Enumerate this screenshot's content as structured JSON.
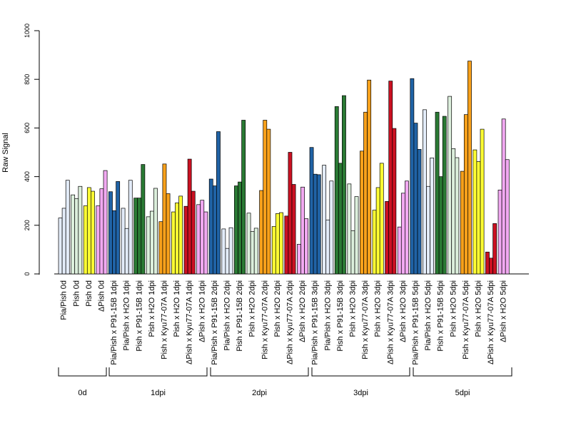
{
  "chart_data": {
    "type": "bar",
    "ylabel": "Raw Signal",
    "ylim": [
      0,
      1000
    ],
    "yticks": [
      0,
      200,
      400,
      600,
      800,
      1000
    ],
    "grid": false,
    "legend": "none",
    "group_colors": [
      "#e3ecf9",
      "#2063a6",
      "#dcefdc",
      "#2a7a34",
      "#f8a11b",
      "#ffff33",
      "#cc1122",
      "#f2a9f2"
    ],
    "categories": [
      "Pia/Pish 0d",
      "Pish 0d",
      "Pish 0d",
      "ΔPish 0d",
      "Pia/Pish x P91-15B 1dpi",
      "Pia/Pish x H2O 1dpi",
      "Pish x P91-15B 1dpi",
      "Pish x H2O 1dpi",
      "Pish x Kyu77-07A 1dpi",
      "Pish x H2O 1dpi",
      "ΔPish x Kyu77-07A 1dpi",
      "ΔPish x H2O 1dpi",
      "Pia/Pish x P91-15B 2dpi",
      "Pia/Pish x H2O 2dpi",
      "Pish x P91-15B 2dpi",
      "Pish x H2O 2dpi",
      "Pish x Kyu77-07A 2dpi",
      "Pish x H2O 2dpi",
      "ΔPish x Kyu77-07A 2dpi",
      "ΔPish x H2O 2dpi",
      "Pia/Pish x P91-15B 3dpi",
      "Pia/Pish x H2O 3dpi",
      "Pish x P91-15B 3dpi",
      "Pish x H2O 3dpi",
      "Pish x Kyu77-07A 3dpi",
      "Pish x H2O 3dpi",
      "ΔPish x Kyu77-07A 3dpi",
      "ΔPish x H2O 3dpi",
      "Pia/Pish x P91-15B 5dpi",
      "Pia/Pish x H2O 5dpi",
      "Pish x P91-15B 5dpi",
      "Pish x H2O 5dpi",
      "Pish x Kyu77-07A 5dpi",
      "Pish x H2O 5dpi",
      "ΔPish x Kyu77-07A 5dpi",
      "ΔPish x H2O 5dpi"
    ],
    "color_index": [
      0,
      2,
      5,
      7,
      1,
      0,
      3,
      2,
      4,
      5,
      6,
      7,
      1,
      0,
      3,
      2,
      4,
      5,
      6,
      7,
      1,
      0,
      3,
      2,
      4,
      5,
      6,
      7,
      1,
      0,
      3,
      2,
      4,
      5,
      6,
      7
    ],
    "values": [
      [
        230,
        270,
        385
      ],
      [
        325,
        310,
        360
      ],
      [
        280,
        355,
        340
      ],
      [
        280,
        350,
        425
      ],
      [
        338,
        260,
        380
      ],
      [
        270,
        187,
        385
      ],
      [
        312,
        312,
        450
      ],
      [
        235,
        258,
        352
      ],
      [
        215,
        452,
        330
      ],
      [
        255,
        292,
        320
      ],
      [
        278,
        472,
        340
      ],
      [
        285,
        303,
        255
      ],
      [
        390,
        362,
        585
      ],
      [
        185,
        105,
        190
      ],
      [
        362,
        378,
        632
      ],
      [
        250,
        175,
        188
      ],
      [
        343,
        632,
        595
      ],
      [
        195,
        248,
        252
      ],
      [
        238,
        500,
        368
      ],
      [
        122,
        357,
        227
      ],
      [
        520,
        410,
        408
      ],
      [
        447,
        222,
        382
      ],
      [
        688,
        455,
        733
      ],
      [
        370,
        178,
        318
      ],
      [
        505,
        665,
        797
      ],
      [
        262,
        355,
        455
      ],
      [
        298,
        793,
        598
      ],
      [
        193,
        332,
        382
      ],
      [
        803,
        620,
        512
      ],
      [
        675,
        360,
        477
      ],
      [
        665,
        400,
        648
      ],
      [
        730,
        515,
        478
      ],
      [
        422,
        655,
        875
      ],
      [
        510,
        462,
        595
      ],
      [
        90,
        65,
        207
      ],
      [
        345,
        637,
        470
      ]
    ],
    "groups": [
      {
        "label": "0d",
        "start": 0,
        "end": 3
      },
      {
        "label": "1dpi",
        "start": 4,
        "end": 11
      },
      {
        "label": "2dpi",
        "start": 12,
        "end": 19
      },
      {
        "label": "3dpi",
        "start": 20,
        "end": 27
      },
      {
        "label": "5dpi",
        "start": 28,
        "end": 35
      }
    ]
  }
}
